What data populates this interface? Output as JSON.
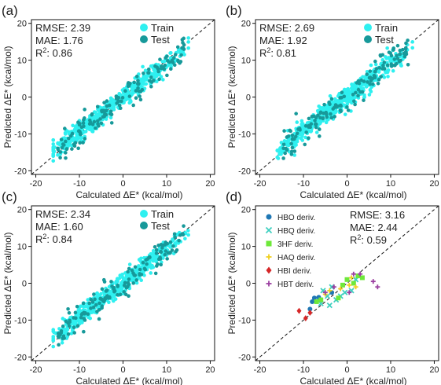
{
  "chart_data": [
    {
      "panel_label": "(a)",
      "type": "scatter",
      "xlabel": "Calculated  ΔE*  (kcal/mol)",
      "ylabel": "Predicted  ΔE*  (kcal/mol)",
      "xlim": [
        -21,
        21
      ],
      "ylim": [
        -21,
        21
      ],
      "xticks": [
        -20,
        -10,
        0,
        10,
        20
      ],
      "yticks": [
        -20,
        -10,
        0,
        10,
        20
      ],
      "diagonal": true,
      "stats": [
        "RMSE: 2.39",
        "MAE: 1.76",
        "R²: 0.86"
      ],
      "series": [
        {
          "name": "Train",
          "color": "#2ef0f0",
          "description": "Dense cloud of points along the diagonal from about (-16,-14) to (15,13)"
        },
        {
          "name": "Test",
          "color": "#17999a",
          "description": "Points along the diagonal with wider spread"
        }
      ],
      "rmse": 2.39,
      "seed": 11
    },
    {
      "panel_label": "(b)",
      "type": "scatter",
      "xlabel": "Calculated  ΔE*  (kcal/mol)",
      "ylabel": "Predicted  ΔE*  (kcal/mol)",
      "xlim": [
        -21,
        21
      ],
      "ylim": [
        -21,
        21
      ],
      "xticks": [
        -20,
        -10,
        0,
        10,
        20
      ],
      "yticks": [
        -20,
        -10,
        0,
        10,
        20
      ],
      "diagonal": true,
      "stats": [
        "RMSE: 2.69",
        "MAE: 1.92",
        "R²: 0.81"
      ],
      "series": [
        {
          "name": "Train",
          "color": "#2ef0f0"
        },
        {
          "name": "Test",
          "color": "#17999a"
        }
      ],
      "rmse": 2.69,
      "seed": 23
    },
    {
      "panel_label": "(c)",
      "type": "scatter",
      "xlabel": "Calculated  ΔE*  (kcal/mol)",
      "ylabel": "Predicted  ΔE*  (kcal/mol)",
      "xlim": [
        -21,
        21
      ],
      "ylim": [
        -21,
        21
      ],
      "xticks": [
        -20,
        -10,
        0,
        10,
        20
      ],
      "yticks": [
        -20,
        -10,
        0,
        10,
        20
      ],
      "diagonal": true,
      "stats": [
        "RMSE: 2.34",
        "MAE: 1.60",
        "R²: 0.84"
      ],
      "series": [
        {
          "name": "Train",
          "color": "#2ef0f0"
        },
        {
          "name": "Test",
          "color": "#17999a"
        }
      ],
      "rmse": 2.34,
      "seed": 37
    },
    {
      "panel_label": "(d)",
      "type": "scatter",
      "xlabel": "Calculated  ΔE*  (kcal/mol)",
      "ylabel": "Predicted  ΔE*  (kcal/mol)",
      "xlim": [
        -21,
        21
      ],
      "ylim": [
        -21,
        21
      ],
      "xticks": [
        -20,
        -10,
        0,
        10,
        20
      ],
      "yticks": [
        -20,
        -10,
        0,
        10,
        20
      ],
      "diagonal": true,
      "stats": [
        "RMSE: 3.16",
        "MAE: 2.44",
        "R²: 0.59"
      ],
      "series": [
        {
          "name": "HBO deriv.",
          "color": "#1f77b4",
          "marker": "circle",
          "points": [
            [
              -7.5,
              -4.0
            ],
            [
              -6.5,
              -3.8
            ],
            [
              -8.0,
              -5.0
            ],
            [
              -3.5,
              -2.5
            ],
            [
              -8.5,
              -7.0
            ]
          ]
        },
        {
          "name": "HBQ deriv.",
          "color": "#3fd0c0",
          "marker": "x",
          "points": [
            [
              -5.5,
              -2.0
            ],
            [
              -4.5,
              -3.5
            ],
            [
              -3.5,
              -1.0
            ],
            [
              -1.5,
              -3.5
            ],
            [
              -2.5,
              -4.5
            ],
            [
              -0.5,
              -2.5
            ],
            [
              1.0,
              -2.0
            ],
            [
              2.0,
              1.0
            ],
            [
              -6.0,
              -5.5
            ],
            [
              -4.0,
              -6.0
            ]
          ]
        },
        {
          "name": "3HF deriv.",
          "color": "#6ee83a",
          "marker": "square",
          "points": [
            [
              -7.0,
              -5.0
            ],
            [
              -6.0,
              -4.5
            ],
            [
              -1.0,
              -0.5
            ],
            [
              0.0,
              1.0
            ],
            [
              1.5,
              0.0
            ],
            [
              3.5,
              1.5
            ],
            [
              2.5,
              2.0
            ],
            [
              -2.0,
              -4.0
            ]
          ]
        },
        {
          "name": "HAQ deriv.",
          "color": "#f0d020",
          "marker": "plus",
          "points": [
            [
              -5.0,
              -3.0
            ],
            [
              -4.0,
              -2.0
            ],
            [
              -1.5,
              -1.5
            ],
            [
              0.5,
              -0.5
            ],
            [
              1.0,
              1.5
            ],
            [
              2.0,
              -1.0
            ]
          ]
        },
        {
          "name": "HBI deriv.",
          "color": "#d62728",
          "marker": "diamond",
          "points": [
            [
              -11.0,
              -7.5
            ],
            [
              -9.5,
              -9.5
            ],
            [
              -8.5,
              -8.0
            ]
          ]
        },
        {
          "name": "HBT deriv.",
          "color": "#9b3fa0",
          "marker": "plus",
          "points": [
            [
              -5.0,
              -2.5
            ],
            [
              -3.0,
              -1.0
            ],
            [
              1.5,
              2.5
            ],
            [
              3.0,
              2.5
            ],
            [
              6.0,
              0.5
            ],
            [
              7.0,
              -1.0
            ],
            [
              0.5,
              -2.5
            ]
          ]
        }
      ]
    }
  ]
}
